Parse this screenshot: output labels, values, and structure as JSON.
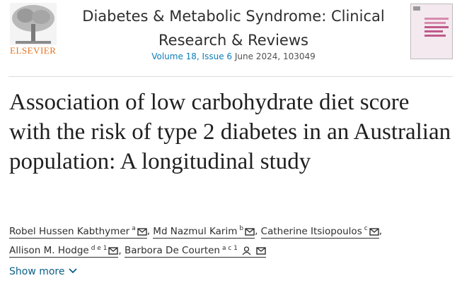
{
  "header": {
    "publisher": "ELSEVIER",
    "journal": "Diabetes & Metabolic Syndrome: Clinical Research & Reviews",
    "volume": "Volume 18, Issue 6",
    "date": "June 2024, 103049"
  },
  "article": {
    "title": "Association of low carbohydrate diet score with the risk of type 2 diabetes in an Australian population: A longitudinal study",
    "authors": [
      {
        "name": "Robel Hussen Kabthymer",
        "affiliations": "a"
      },
      {
        "name": "Md Nazmul Karim",
        "affiliations": "b"
      },
      {
        "name": "Catherine Itsiopoulos",
        "affiliations": "c"
      },
      {
        "name": "Allison M. Hodge",
        "affiliations": "d e 1"
      },
      {
        "name": "Barbora De Courten",
        "affiliations": "a c 1"
      }
    ],
    "author_separator": ",",
    "show_more": "Show more"
  }
}
